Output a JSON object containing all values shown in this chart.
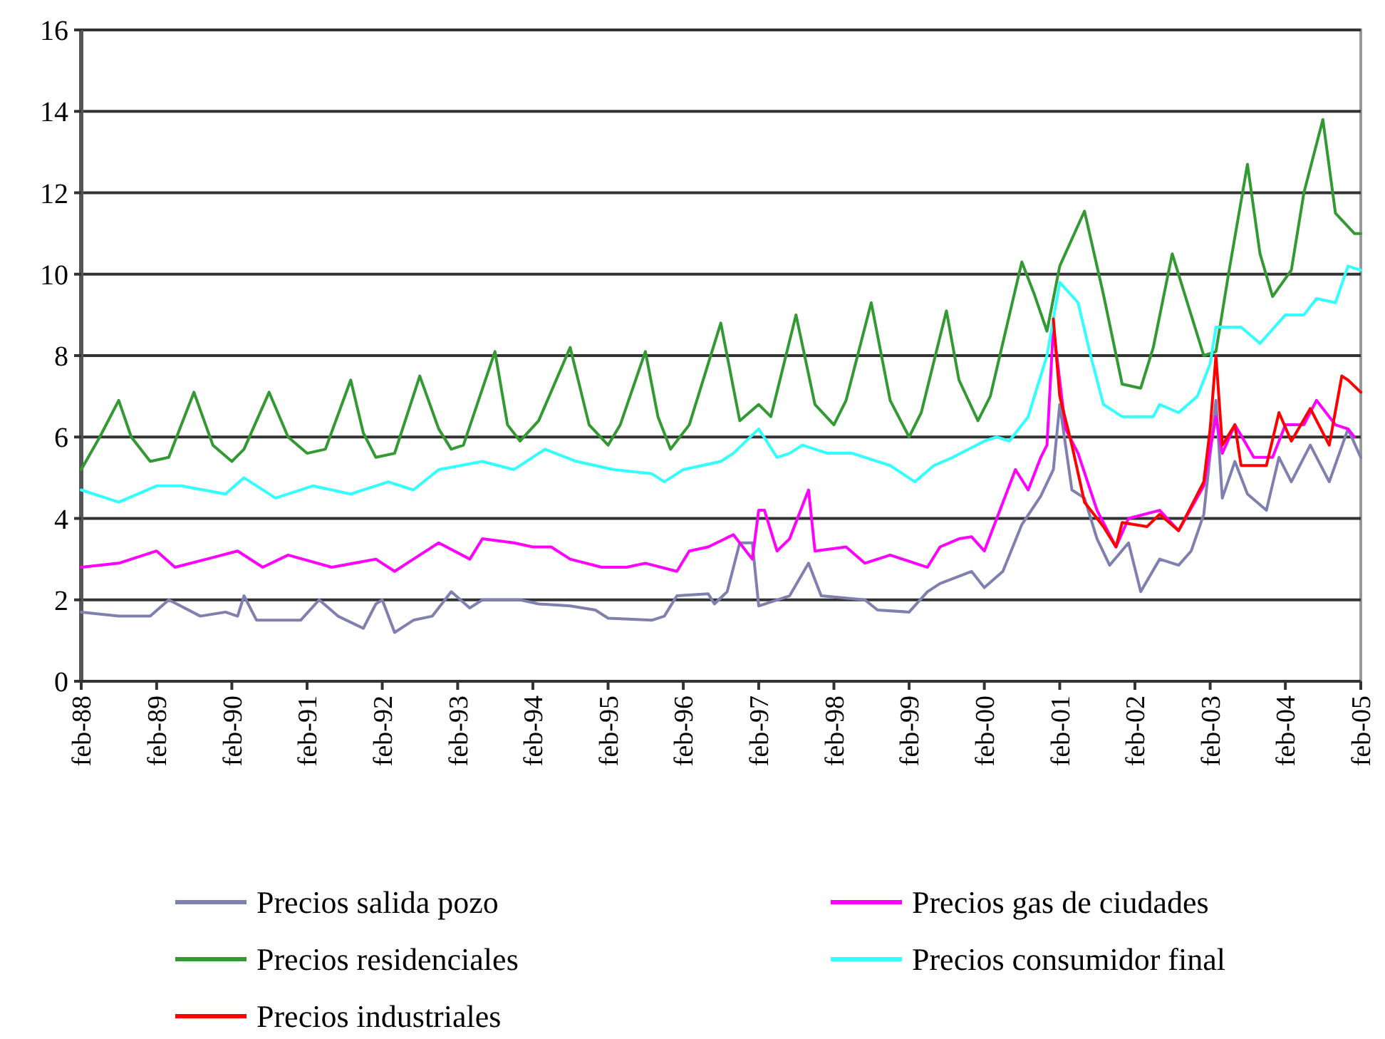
{
  "chart_data": {
    "type": "line",
    "ylim": [
      0,
      16
    ],
    "yticks": [
      0,
      2,
      4,
      6,
      8,
      10,
      12,
      14,
      16
    ],
    "xlim": [
      "1988-02",
      "2005-02"
    ],
    "xticks": [
      {
        "value": "1988-02",
        "label": "feb-88"
      },
      {
        "value": "1989-02",
        "label": "feb-89"
      },
      {
        "value": "1990-02",
        "label": "feb-90"
      },
      {
        "value": "1991-02",
        "label": "feb-91"
      },
      {
        "value": "1992-02",
        "label": "feb-92"
      },
      {
        "value": "1993-02",
        "label": "feb-93"
      },
      {
        "value": "1994-02",
        "label": "feb-94"
      },
      {
        "value": "1995-02",
        "label": "feb-95"
      },
      {
        "value": "1996-02",
        "label": "feb-96"
      },
      {
        "value": "1997-02",
        "label": "feb-97"
      },
      {
        "value": "1998-02",
        "label": "feb-98"
      },
      {
        "value": "1999-02",
        "label": "feb-99"
      },
      {
        "value": "2000-02",
        "label": "feb-00"
      },
      {
        "value": "2001-02",
        "label": "feb-01"
      },
      {
        "value": "2002-02",
        "label": "feb-02"
      },
      {
        "value": "2003-02",
        "label": "feb-03"
      },
      {
        "value": "2004-02",
        "label": "feb-04"
      },
      {
        "value": "2005-02",
        "label": "feb-05"
      }
    ],
    "grid": "y",
    "legend": "bottom",
    "marker": "none",
    "line_style": "solid",
    "series": [
      {
        "name": "Precios salida pozo",
        "color": "#8080b0",
        "x": [
          "1988-02",
          "1988-08",
          "1989-01",
          "1989-04",
          "1989-09",
          "1990-01",
          "1990-03",
          "1990-04",
          "1990-06",
          "1991-01",
          "1991-04",
          "1991-07",
          "1991-11",
          "1992-01",
          "1992-02",
          "1992-04",
          "1992-07",
          "1992-10",
          "1993-01",
          "1993-04",
          "1993-06",
          "1993-12",
          "1994-03",
          "1994-08",
          "1994-12",
          "1995-02",
          "1995-09",
          "1995-11",
          "1996-01",
          "1996-06",
          "1996-07",
          "1996-09",
          "1996-11",
          "1997-01",
          "1997-02",
          "1997-07",
          "1997-10",
          "1997-12",
          "1998-07",
          "1998-09",
          "1999-02",
          "1999-05",
          "1999-07",
          "1999-12",
          "2000-02",
          "2000-05",
          "2000-08",
          "2000-11",
          "2001-01",
          "2001-02",
          "2001-04",
          "2001-06",
          "2001-08",
          "2001-10",
          "2002-01",
          "2002-03",
          "2002-06",
          "2002-09",
          "2002-11",
          "2003-01",
          "2003-03",
          "2003-04",
          "2003-06",
          "2003-08",
          "2003-11",
          "2004-01",
          "2004-03",
          "2004-06",
          "2004-09",
          "2004-12",
          "2005-02"
        ],
        "values": [
          1.7,
          1.6,
          1.6,
          2.0,
          1.6,
          1.7,
          1.6,
          2.1,
          1.5,
          1.5,
          2.0,
          1.6,
          1.3,
          1.9,
          2.0,
          1.2,
          1.5,
          1.6,
          2.2,
          1.8,
          2.0,
          2.0,
          1.9,
          1.85,
          1.75,
          1.55,
          1.5,
          1.6,
          2.1,
          2.15,
          1.9,
          2.2,
          3.4,
          3.4,
          1.85,
          2.1,
          2.9,
          2.1,
          2.0,
          1.75,
          1.7,
          2.2,
          2.4,
          2.7,
          2.3,
          2.7,
          3.85,
          4.55,
          5.2,
          6.8,
          4.7,
          4.5,
          3.5,
          2.85,
          3.4,
          2.2,
          3.0,
          2.85,
          3.2,
          4.1,
          6.9,
          4.5,
          5.4,
          4.6,
          4.2,
          5.5,
          4.9,
          5.8,
          4.9,
          6.2,
          5.5
        ]
      },
      {
        "name": "Precios gas de ciudades",
        "color": "#ff00ff",
        "x": [
          "1988-02",
          "1988-08",
          "1989-02",
          "1989-05",
          "1989-10",
          "1990-03",
          "1990-07",
          "1990-11",
          "1991-06",
          "1992-01",
          "1992-04",
          "1992-07",
          "1992-11",
          "1993-04",
          "1993-06",
          "1993-11",
          "1994-02",
          "1994-05",
          "1994-08",
          "1995-01",
          "1995-05",
          "1995-08",
          "1996-01",
          "1996-03",
          "1996-06",
          "1996-10",
          "1997-01",
          "1997-02",
          "1997-03",
          "1997-05",
          "1997-07",
          "1997-10",
          "1997-11",
          "1998-04",
          "1998-07",
          "1998-11",
          "1999-05",
          "1999-07",
          "1999-10",
          "1999-12",
          "2000-02",
          "2000-07",
          "2000-09",
          "2000-11",
          "2000-12",
          "2001-01",
          "2001-03",
          "2001-05",
          "2001-08",
          "2001-11",
          "2002-01",
          "2002-06",
          "2002-09",
          "2003-01",
          "2003-03",
          "2003-04",
          "2003-06",
          "2003-09",
          "2003-12",
          "2004-02",
          "2004-05",
          "2004-07",
          "2004-10",
          "2004-12",
          "2005-01"
        ],
        "values": [
          2.8,
          2.9,
          3.2,
          2.8,
          3.0,
          3.2,
          2.8,
          3.1,
          2.8,
          3.0,
          2.7,
          3.0,
          3.4,
          3.0,
          3.5,
          3.4,
          3.3,
          3.3,
          3.0,
          2.8,
          2.8,
          2.9,
          2.7,
          3.2,
          3.3,
          3.6,
          3.0,
          4.2,
          4.2,
          3.2,
          3.5,
          4.7,
          3.2,
          3.3,
          2.9,
          3.1,
          2.8,
          3.3,
          3.5,
          3.55,
          3.2,
          5.2,
          4.7,
          5.5,
          5.8,
          8.7,
          6.2,
          5.6,
          4.2,
          3.3,
          4.0,
          4.2,
          3.7,
          4.8,
          6.5,
          5.6,
          6.3,
          5.5,
          5.5,
          6.3,
          6.3,
          6.9,
          6.3,
          6.2,
          6.0
        ]
      },
      {
        "name": "Precios residenciales",
        "color": "#339933",
        "x": [
          "1988-02",
          "1988-05",
          "1988-08",
          "1988-10",
          "1989-01",
          "1989-04",
          "1989-08",
          "1989-11",
          "1990-02",
          "1990-04",
          "1990-08",
          "1990-11",
          "1991-02",
          "1991-05",
          "1991-09",
          "1991-11",
          "1992-01",
          "1992-04",
          "1992-08",
          "1992-11",
          "1993-01",
          "1993-03",
          "1993-08",
          "1993-10",
          "1993-12",
          "1994-03",
          "1994-08",
          "1994-11",
          "1995-02",
          "1995-04",
          "1995-08",
          "1995-10",
          "1995-12",
          "1996-03",
          "1996-08",
          "1996-11",
          "1997-02",
          "1997-04",
          "1997-08",
          "1997-11",
          "1998-02",
          "1998-04",
          "1998-08",
          "1998-11",
          "1999-02",
          "1999-04",
          "1999-08",
          "1999-10",
          "2000-01",
          "2000-03",
          "2000-08",
          "2000-10",
          "2000-12",
          "2001-02",
          "2001-06",
          "2001-09",
          "2001-12",
          "2002-03",
          "2002-05",
          "2002-08",
          "2002-10",
          "2003-01",
          "2003-03",
          "2003-05",
          "2003-08",
          "2003-10",
          "2003-12",
          "2004-03",
          "2004-05",
          "2004-08",
          "2004-10",
          "2005-01",
          "2005-02"
        ],
        "values": [
          5.2,
          6.0,
          6.9,
          6.0,
          5.4,
          5.5,
          7.1,
          5.8,
          5.4,
          5.7,
          7.1,
          6.0,
          5.6,
          5.7,
          7.4,
          6.1,
          5.5,
          5.6,
          7.5,
          6.2,
          5.7,
          5.8,
          8.1,
          6.3,
          5.9,
          6.4,
          8.2,
          6.3,
          5.8,
          6.3,
          8.1,
          6.5,
          5.7,
          6.3,
          8.8,
          6.4,
          6.8,
          6.5,
          9.0,
          6.8,
          6.3,
          6.9,
          9.3,
          6.9,
          6.0,
          6.6,
          9.1,
          7.4,
          6.4,
          7.0,
          10.3,
          9.5,
          8.6,
          10.2,
          11.55,
          9.5,
          7.3,
          7.2,
          8.2,
          10.5,
          9.5,
          8.0,
          8.1,
          10.0,
          12.7,
          10.5,
          9.45,
          10.1,
          12.0,
          13.8,
          11.5,
          11.0,
          11.0
        ]
      },
      {
        "name": "Precios consumidor final",
        "color": "#33ffff",
        "x": [
          "1988-02",
          "1988-08",
          "1989-02",
          "1989-06",
          "1990-01",
          "1990-04",
          "1990-09",
          "1991-03",
          "1991-09",
          "1992-03",
          "1992-07",
          "1992-11",
          "1993-06",
          "1993-11",
          "1994-04",
          "1994-09",
          "1995-03",
          "1995-09",
          "1995-11",
          "1996-02",
          "1996-08",
          "1996-10",
          "1997-02",
          "1997-05",
          "1997-07",
          "1997-09",
          "1998-01",
          "1998-05",
          "1998-11",
          "1999-03",
          "1999-06",
          "1999-09",
          "2000-02",
          "2000-04",
          "2000-06",
          "2000-09",
          "2000-10",
          "2000-12",
          "2001-02",
          "2001-05",
          "2001-07",
          "2001-09",
          "2001-12",
          "2002-05",
          "2002-06",
          "2002-09",
          "2002-12",
          "2003-02",
          "2003-03",
          "2003-07",
          "2003-10",
          "2004-02",
          "2004-05",
          "2004-07",
          "2004-10",
          "2004-12",
          "2005-02"
        ],
        "values": [
          4.7,
          4.4,
          4.8,
          4.8,
          4.6,
          5.0,
          4.5,
          4.8,
          4.6,
          4.9,
          4.7,
          5.2,
          5.4,
          5.2,
          5.7,
          5.4,
          5.2,
          5.1,
          4.9,
          5.2,
          5.4,
          5.6,
          6.2,
          5.5,
          5.6,
          5.8,
          5.6,
          5.6,
          5.3,
          4.9,
          5.3,
          5.5,
          5.9,
          6.0,
          5.9,
          6.5,
          7.0,
          8.0,
          9.8,
          9.3,
          8.0,
          6.8,
          6.5,
          6.5,
          6.8,
          6.6,
          7.0,
          7.8,
          8.7,
          8.7,
          8.3,
          9.0,
          9.0,
          9.4,
          9.3,
          10.2,
          10.1
        ]
      },
      {
        "name": "Precios industriales",
        "color": "#ff0000",
        "x": [
          "2001-01",
          "2001-02",
          "2001-04",
          "2001-06",
          "2001-09",
          "2001-11",
          "2001-12",
          "2002-04",
          "2002-06",
          "2002-09",
          "2003-01",
          "2003-02",
          "2003-03",
          "2003-04",
          "2003-06",
          "2003-07",
          "2003-11",
          "2004-01",
          "2004-03",
          "2004-06",
          "2004-09",
          "2004-11",
          "2004-12",
          "2005-02"
        ],
        "values": [
          8.9,
          7.0,
          5.8,
          4.4,
          3.8,
          3.3,
          3.9,
          3.8,
          4.1,
          3.7,
          4.9,
          6.2,
          8.0,
          5.8,
          6.3,
          5.3,
          5.3,
          6.6,
          5.9,
          6.7,
          5.8,
          7.5,
          7.4,
          7.1
        ]
      }
    ]
  }
}
